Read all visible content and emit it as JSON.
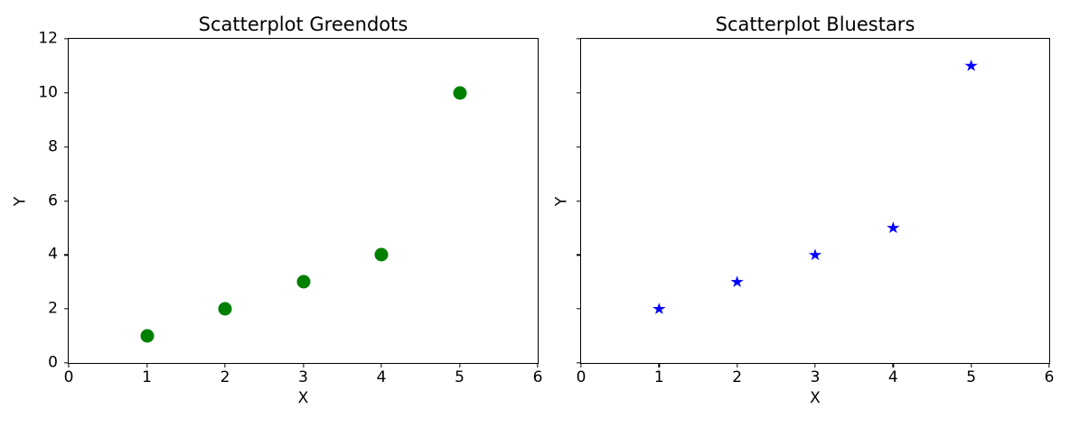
{
  "figure": {
    "background_color": "#ffffff",
    "text_color": "#000000",
    "spine_color": "#000000"
  },
  "chart_data": [
    {
      "type": "scatter",
      "title": "Scatterplot Greendots",
      "xlabel": "X",
      "ylabel": "Y",
      "xlim": [
        0,
        6
      ],
      "ylim": [
        0,
        12
      ],
      "xticks": [
        0,
        1,
        2,
        3,
        4,
        5,
        6
      ],
      "yticks": [
        0,
        2,
        4,
        6,
        8,
        10,
        12
      ],
      "show_ytick_labels": true,
      "grid": false,
      "marker": "circle",
      "marker_color": "#008000",
      "series": [
        {
          "name": "greendots",
          "points": [
            [
              1,
              1
            ],
            [
              2,
              2
            ],
            [
              3,
              3
            ],
            [
              4,
              4
            ],
            [
              5,
              10
            ]
          ]
        }
      ]
    },
    {
      "type": "scatter",
      "title": "Scatterplot Bluestars",
      "xlabel": "X",
      "ylabel": "Y",
      "xlim": [
        0,
        6
      ],
      "ylim": [
        0,
        12
      ],
      "xticks": [
        0,
        1,
        2,
        3,
        4,
        5,
        6
      ],
      "yticks": [
        0,
        2,
        4,
        6,
        8,
        10,
        12
      ],
      "show_ytick_labels": false,
      "grid": false,
      "marker": "star",
      "marker_color": "#0000ff",
      "series": [
        {
          "name": "bluestars",
          "points": [
            [
              1,
              2
            ],
            [
              2,
              3
            ],
            [
              3,
              4
            ],
            [
              4,
              5
            ],
            [
              5,
              11
            ]
          ]
        }
      ]
    }
  ]
}
